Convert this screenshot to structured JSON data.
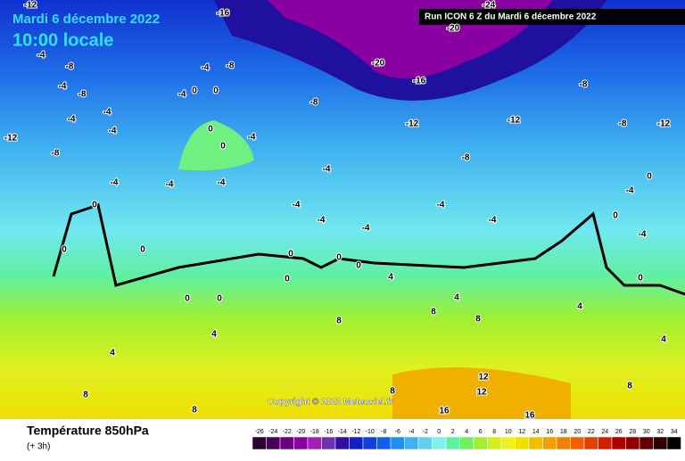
{
  "header": {
    "date": "Mardi 6 décembre 2022",
    "local_time": "10:00 locale",
    "run": "Run ICON 6 Z du Mardi 6 décembre 2022"
  },
  "map": {
    "copyright": "Copyright © 2022 Meteociel.fr",
    "labels": [
      "-12",
      "-8",
      "-4",
      "-8",
      "-4",
      "-8",
      "-4",
      "-4",
      "-4",
      "-4",
      "-4",
      "-4",
      "-4",
      "0",
      "0",
      "-4",
      "0",
      "0",
      "-4",
      "-8",
      "-8",
      "-20",
      "-16",
      "-20",
      "-12",
      "-12",
      "-8",
      "-8",
      "-12",
      "-8",
      "-4",
      "-4",
      "-4",
      "-4",
      "-4",
      "-4",
      "-4",
      "-4",
      "0",
      "0",
      "0",
      "0",
      "0",
      "0",
      "0",
      "0",
      "0",
      "0",
      "0",
      "0",
      "4",
      "4",
      "4",
      "4",
      "4",
      "4",
      "8",
      "8",
      "8",
      "8",
      "8",
      "8",
      "8",
      "12",
      "12",
      "16",
      "16",
      "-16",
      "-12",
      "-24"
    ]
  },
  "footer": {
    "title": "Température 850hPa",
    "step": "(+ 3h)",
    "scale": {
      "ticks": [
        -26,
        -24,
        -22,
        -20,
        -18,
        -16,
        -14,
        -12,
        -10,
        -8,
        -6,
        -4,
        -2,
        0,
        2,
        4,
        6,
        8,
        10,
        12,
        14,
        16,
        18,
        20,
        22,
        24,
        26,
        28,
        30,
        32,
        34
      ],
      "colors": [
        "#2a0030",
        "#4a0058",
        "#6a0080",
        "#8a00a0",
        "#a020b8",
        "#7030b0",
        "#3010a0",
        "#1020c0",
        "#1040e0",
        "#1060f0",
        "#2090f0",
        "#40b0f0",
        "#60d0f0",
        "#80f0f0",
        "#60f0a0",
        "#70f060",
        "#a0f030",
        "#d0f020",
        "#f0f020",
        "#f0e000",
        "#f0c000",
        "#f0a000",
        "#f08000",
        "#f06000",
        "#e04000",
        "#d02000",
        "#b00000",
        "#900000",
        "#600000",
        "#300000",
        "#000000"
      ]
    }
  }
}
